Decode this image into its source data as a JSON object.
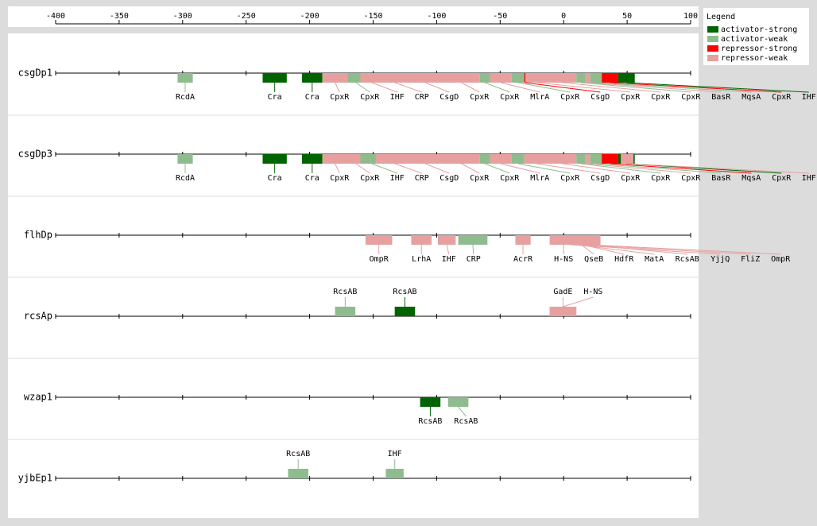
{
  "axis": {
    "ticks": [
      -400,
      -350,
      -300,
      -250,
      -200,
      -150,
      -100,
      -50,
      0,
      50,
      100
    ]
  },
  "legend": {
    "title": "Legend",
    "items": [
      {
        "label": "activator-strong",
        "color": "#006400"
      },
      {
        "label": "activator-weak",
        "color": "#8fbc8f"
      },
      {
        "label": "repressor-strong",
        "color": "#ff0000"
      },
      {
        "label": "repressor-weak",
        "color": "#e6a0a0"
      }
    ]
  },
  "promoters": [
    {
      "name": "csgDp1",
      "sites": [
        {
          "label": "RcdA",
          "start": -304,
          "end": -292,
          "type": "activator-weak"
        },
        {
          "label": "Cra",
          "start": -237,
          "end": -218,
          "type": "activator-strong"
        },
        {
          "label": "Cra",
          "start": -206,
          "end": -190,
          "type": "activator-strong"
        },
        {
          "label": "CpxR",
          "start": -190,
          "end": -170,
          "type": "repressor-weak"
        },
        {
          "label": "CpxR",
          "start": -170,
          "end": -157,
          "type": "activator-weak"
        },
        {
          "label": "IHF",
          "start": -160,
          "end": -142,
          "type": "repressor-weak"
        },
        {
          "label": "CRP",
          "start": -148,
          "end": -118,
          "type": "repressor-weak"
        },
        {
          "label": "CsgD",
          "start": -125,
          "end": -93,
          "type": "repressor-weak"
        },
        {
          "label": "CpxR",
          "start": -95,
          "end": -66,
          "type": "repressor-weak"
        },
        {
          "label": "CpxR",
          "start": -66,
          "end": -58,
          "type": "activator-weak"
        },
        {
          "label": "MlrA",
          "start": -58,
          "end": -41,
          "type": "repressor-weak"
        },
        {
          "label": "CpxR",
          "start": -41,
          "end": -31,
          "type": "activator-weak"
        },
        {
          "label": "CsgD",
          "start": -31,
          "end": -30,
          "type": "repressor-strong"
        },
        {
          "label": "CpxR",
          "start": -30,
          "end": -12,
          "type": "repressor-weak"
        },
        {
          "label": "CpxR",
          "start": -12,
          "end": 10,
          "type": "repressor-weak"
        },
        {
          "label": "CpxR",
          "start": 10,
          "end": 17,
          "type": "activator-weak"
        },
        {
          "label": "BasR",
          "start": 17,
          "end": 21,
          "type": "repressor-weak"
        },
        {
          "label": "MqsA",
          "start": 21,
          "end": 30,
          "type": "activator-weak"
        },
        {
          "label": "CpxR",
          "start": 30,
          "end": 43,
          "type": "repressor-strong"
        },
        {
          "label": "IHF",
          "start": 43,
          "end": 56,
          "type": "activator-strong"
        }
      ]
    },
    {
      "name": "csgDp3",
      "sites": [
        {
          "label": "RcdA",
          "start": -304,
          "end": -292,
          "type": "activator-weak"
        },
        {
          "label": "Cra",
          "start": -237,
          "end": -218,
          "type": "activator-strong"
        },
        {
          "label": "Cra",
          "start": -206,
          "end": -190,
          "type": "activator-strong"
        },
        {
          "label": "CpxR",
          "start": -190,
          "end": -170,
          "type": "repressor-weak"
        },
        {
          "label": "CpxR",
          "start": -170,
          "end": -157,
          "type": "repressor-weak"
        },
        {
          "label": "IHF",
          "start": -160,
          "end": -142,
          "type": "activator-weak"
        },
        {
          "label": "CRP",
          "start": -148,
          "end": -118,
          "type": "repressor-weak"
        },
        {
          "label": "CsgD",
          "start": -125,
          "end": -93,
          "type": "repressor-weak"
        },
        {
          "label": "CpxR",
          "start": -95,
          "end": -66,
          "type": "repressor-weak"
        },
        {
          "label": "CpxR",
          "start": -66,
          "end": -58,
          "type": "activator-weak"
        },
        {
          "label": "MlrA",
          "start": -58,
          "end": -41,
          "type": "repressor-weak"
        },
        {
          "label": "CpxR",
          "start": -41,
          "end": -31,
          "type": "activator-weak"
        },
        {
          "label": "CsgD",
          "start": -31,
          "end": -12,
          "type": "repressor-weak"
        },
        {
          "label": "CpxR",
          "start": -12,
          "end": 10,
          "type": "repressor-weak"
        },
        {
          "label": "CpxR",
          "start": 10,
          "end": 17,
          "type": "activator-weak"
        },
        {
          "label": "CpxR",
          "start": 17,
          "end": 21,
          "type": "repressor-weak"
        },
        {
          "label": "BasR",
          "start": 21,
          "end": 30,
          "type": "activator-weak"
        },
        {
          "label": "MqsA",
          "start": 30,
          "end": 43,
          "type": "repressor-strong"
        },
        {
          "label": "CpxR",
          "start": 43,
          "end": 56,
          "type": "activator-strong"
        },
        {
          "label": "IHF",
          "start": 45,
          "end": 55,
          "type": "repressor-weak"
        }
      ]
    },
    {
      "name": "flhDp",
      "sites": [
        {
          "label": "OmpR",
          "start": -156,
          "end": -135,
          "type": "repressor-weak"
        },
        {
          "label": "LrhA",
          "start": -120,
          "end": -104,
          "type": "repressor-weak"
        },
        {
          "label": "IHF",
          "start": -99,
          "end": -85,
          "type": "repressor-weak"
        },
        {
          "label": "CRP",
          "start": -83,
          "end": -60,
          "type": "activator-weak"
        },
        {
          "label": "AcrR",
          "start": -38,
          "end": -26,
          "type": "repressor-weak"
        },
        {
          "label": "H-NS",
          "start": -11,
          "end": 11,
          "type": "repressor-weak"
        },
        {
          "label": "QseB",
          "start": -1,
          "end": 29,
          "type": "repressor-weak"
        },
        {
          "label": "HdfR",
          "start": 5,
          "end": 25,
          "type": "repressor-weak"
        },
        {
          "label": "MatA",
          "start": 0,
          "end": 20,
          "type": "repressor-weak"
        },
        {
          "label": "RcsAB",
          "start": 8,
          "end": 28,
          "type": "repressor-weak"
        },
        {
          "label": "YjjQ",
          "start": -5,
          "end": 15,
          "type": "repressor-weak"
        },
        {
          "label": "FliZ",
          "start": 3,
          "end": 22,
          "type": "repressor-weak"
        },
        {
          "label": "OmpR",
          "start": 10,
          "end": 29,
          "type": "repressor-weak"
        }
      ]
    },
    {
      "name": "rcsAp",
      "sites": [
        {
          "label": "RcsAB",
          "start": -180,
          "end": -164,
          "type": "activator-weak"
        },
        {
          "label": "RcsAB",
          "start": -133,
          "end": -117,
          "type": "activator-strong"
        },
        {
          "label": "GadE",
          "start": -11,
          "end": 10,
          "type": "repressor-weak"
        },
        {
          "label": "H-NS",
          "start": -11,
          "end": 10,
          "type": "repressor-weak"
        }
      ]
    },
    {
      "name": "wzap1",
      "sites": [
        {
          "label": "RcsAB",
          "start": -113,
          "end": -97,
          "type": "activator-strong"
        },
        {
          "label": "RcsAB",
          "start": -91,
          "end": -75,
          "type": "activator-weak"
        }
      ]
    },
    {
      "name": "yjbEp1",
      "sites": [
        {
          "label": "RcsAB",
          "start": -217,
          "end": -201,
          "type": "activator-weak"
        },
        {
          "label": "IHF",
          "start": -140,
          "end": -126,
          "type": "activator-weak"
        }
      ]
    }
  ]
}
